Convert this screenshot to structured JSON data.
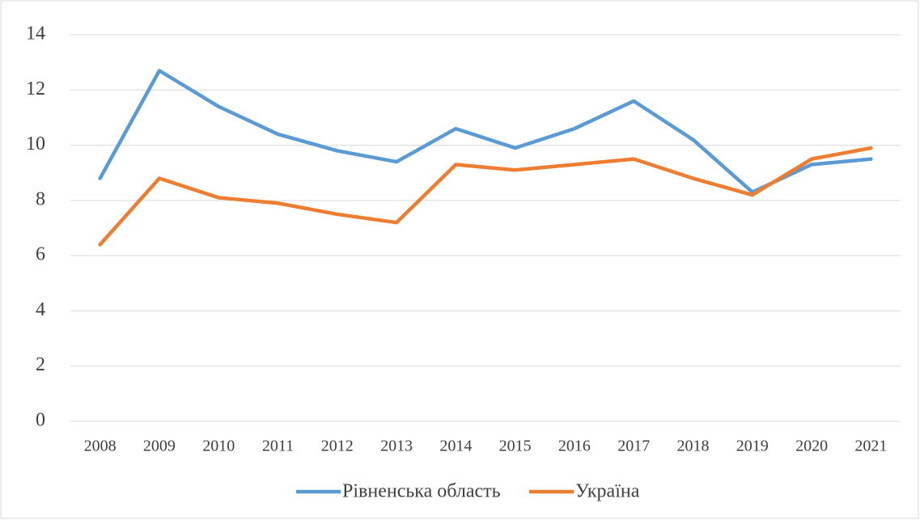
{
  "chart_data": {
    "type": "line",
    "categories": [
      "2008",
      "2009",
      "2010",
      "2011",
      "2012",
      "2013",
      "2014",
      "2015",
      "2016",
      "2017",
      "2018",
      "2019",
      "2020",
      "2021"
    ],
    "series": [
      {
        "name": "Рівненська область",
        "color": "#5b9bd5",
        "values": [
          8.8,
          12.7,
          11.4,
          10.4,
          9.8,
          9.4,
          10.6,
          9.9,
          10.6,
          11.6,
          10.2,
          8.3,
          9.3,
          9.5
        ]
      },
      {
        "name": "Україна",
        "color": "#ed7d31",
        "values": [
          6.4,
          8.8,
          8.1,
          7.9,
          7.5,
          7.2,
          9.3,
          9.1,
          9.3,
          9.5,
          8.8,
          8.2,
          9.5,
          9.9
        ]
      }
    ],
    "ylim": [
      0,
      14
    ],
    "yticks": [
      0,
      2,
      4,
      6,
      8,
      10,
      12,
      14
    ],
    "grid": true,
    "legend": "bottom"
  }
}
